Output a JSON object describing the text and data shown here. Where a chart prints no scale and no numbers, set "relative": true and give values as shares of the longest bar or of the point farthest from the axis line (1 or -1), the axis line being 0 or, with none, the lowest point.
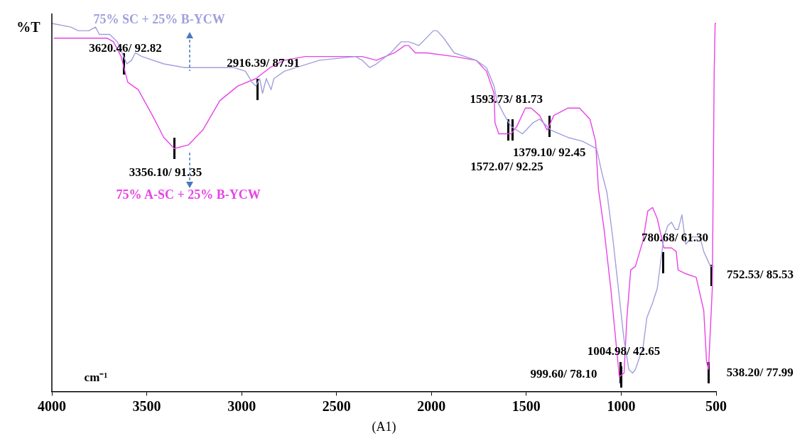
{
  "chart_data": {
    "type": "line",
    "title": "(A1)",
    "xlabel": "cm⁻¹",
    "ylabel": "%T",
    "relative": true,
    "xlim": [
      4000,
      500
    ],
    "xticks": [
      4000,
      3500,
      3000,
      2500,
      2000,
      1500,
      1000,
      500
    ],
    "grid": false,
    "legend": false,
    "marker": "none",
    "line_style": "solid",
    "series": [
      {
        "name": "75% SC + 25% B-YCW",
        "color": "#a0a0dc",
        "x": [
          4000,
          3900,
          3860,
          3805,
          3770,
          3750,
          3695,
          3655,
          3630,
          3605,
          3580,
          3560,
          3525,
          3410,
          3300,
          3150,
          3040,
          2980,
          2945,
          2925,
          2905,
          2890,
          2870,
          2845,
          2830,
          2775,
          2590,
          2400,
          2365,
          2325,
          2290,
          2215,
          2160,
          2120,
          2065,
          1990,
          1970,
          1935,
          1880,
          1765,
          1710,
          1670,
          1655,
          1615,
          1580,
          1520,
          1465,
          1430,
          1370,
          1280,
          1205,
          1130,
          1100,
          1075,
          1045,
          1015,
          985,
          960,
          940,
          925,
          885,
          865,
          835,
          810,
          775,
          755,
          735,
          715,
          700,
          680,
          660,
          625,
          585,
          565,
          530,
          510
        ],
        "values": [
          1.0,
          0.99,
          0.98,
          0.98,
          0.99,
          0.97,
          0.97,
          0.95,
          0.92,
          0.89,
          0.9,
          0.92,
          0.91,
          0.89,
          0.88,
          0.88,
          0.88,
          0.87,
          0.84,
          0.83,
          0.85,
          0.81,
          0.85,
          0.82,
          0.85,
          0.87,
          0.9,
          0.91,
          0.9,
          0.88,
          0.89,
          0.92,
          0.95,
          0.95,
          0.94,
          0.98,
          0.98,
          0.96,
          0.92,
          0.9,
          0.88,
          0.83,
          0.79,
          0.75,
          0.72,
          0.7,
          0.73,
          0.74,
          0.71,
          0.69,
          0.68,
          0.66,
          0.59,
          0.54,
          0.42,
          0.28,
          0.14,
          0.06,
          0.05,
          0.06,
          0.12,
          0.2,
          0.24,
          0.28,
          0.42,
          0.45,
          0.46,
          0.44,
          0.44,
          0.48,
          0.4,
          0.42,
          0.42,
          0.38,
          0.34,
          0.34
        ]
      },
      {
        "name": "75% A-SC + 25% B-YCW",
        "color": "#e843e8",
        "x": [
          3990,
          3710,
          3675,
          3635,
          3600,
          3545,
          3470,
          3410,
          3355,
          3280,
          3205,
          3115,
          3020,
          2925,
          2850,
          2775,
          2665,
          2515,
          2365,
          2290,
          2195,
          2140,
          2120,
          2085,
          2025,
          1880,
          1765,
          1710,
          1670,
          1665,
          1645,
          1580,
          1550,
          1505,
          1475,
          1430,
          1390,
          1355,
          1280,
          1220,
          1165,
          1135,
          1120,
          1090,
          1055,
          1010,
          985,
          970,
          950,
          925,
          885,
          860,
          835,
          810,
          775,
          735,
          710,
          700,
          660,
          605,
          565,
          550,
          540,
          520,
          510,
          505,
          500
        ],
        "values": [
          0.96,
          0.96,
          0.95,
          0.91,
          0.84,
          0.82,
          0.75,
          0.69,
          0.66,
          0.67,
          0.71,
          0.79,
          0.83,
          0.85,
          0.88,
          0.9,
          0.91,
          0.91,
          0.91,
          0.9,
          0.92,
          0.94,
          0.94,
          0.92,
          0.92,
          0.91,
          0.9,
          0.87,
          0.81,
          0.73,
          0.7,
          0.7,
          0.72,
          0.77,
          0.77,
          0.75,
          0.71,
          0.75,
          0.77,
          0.77,
          0.74,
          0.68,
          0.55,
          0.44,
          0.28,
          0.04,
          0.05,
          0.2,
          0.33,
          0.34,
          0.41,
          0.49,
          0.5,
          0.47,
          0.39,
          0.39,
          0.38,
          0.33,
          0.32,
          0.31,
          0.22,
          0.08,
          0.06,
          0.28,
          0.87,
          1.0,
          1.0
        ]
      }
    ],
    "annotations": [
      {
        "text": "3620.46/ 92.82",
        "x": 3620.46,
        "y": 0.89
      },
      {
        "text": "3356.10/ 91.35",
        "x": 3356.1,
        "y": 0.66
      },
      {
        "text": "2916.39/ 87.91",
        "x": 2916.39,
        "y": 0.82
      },
      {
        "text": "1593.73/ 81.73",
        "x": 1593.73,
        "y": 0.71
      },
      {
        "text": "1572.07/ 92.25",
        "x": 1572.07,
        "y": 0.71
      },
      {
        "text": "1379.10/ 92.45",
        "x": 1379.1,
        "y": 0.72
      },
      {
        "text": "1004.98/ 42.65",
        "x": 1004.98,
        "y": 0.05
      },
      {
        "text": "999.60/ 78.10",
        "x": 999.6,
        "y": 0.04
      },
      {
        "text": "780.68/ 61.30",
        "x": 780.68,
        "y": 0.35
      },
      "752.53/ 85.53",
      {
        "text": "538.20/ 77.99",
        "x": 538.2,
        "y": 0.05
      }
    ]
  }
}
